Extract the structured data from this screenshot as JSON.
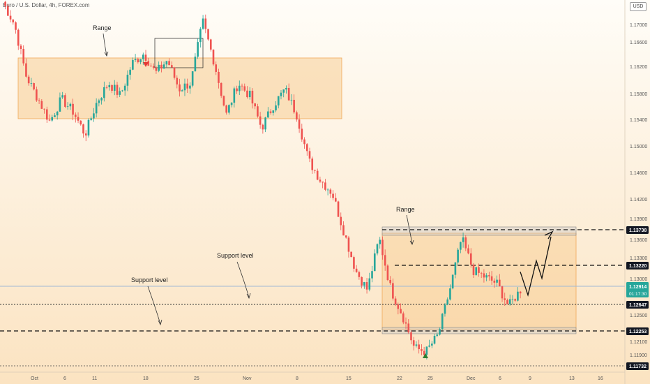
{
  "header": {
    "symbol": "Euro / U.S. Dollar, 4h, FOREX.com",
    "currency": "USD"
  },
  "chart_data": {
    "type": "candlestick",
    "title": "Euro / U.S. Dollar, 4h, FOREX.com",
    "ylim": [
      1.117,
      1.1745
    ],
    "price_axis": [
      "1.17000",
      "1.16600",
      "1.16200",
      "1.15800",
      "1.15400",
      "1.15000",
      "1.14600",
      "1.14200",
      "1.13900",
      "1.13600",
      "1.13300",
      "1.13000",
      "1.12500",
      "1.12100",
      "1.11900"
    ],
    "date_axis": [
      "Oct",
      "6",
      "11",
      "18",
      "25",
      "Nov",
      "8",
      "15",
      "22",
      "25",
      "Dec",
      "6",
      "9",
      "13",
      "16"
    ],
    "price_path": [
      [
        "Oct",
        1.1735
      ],
      [
        "Oct",
        1.17
      ],
      [
        "Oct",
        1.162
      ],
      [
        "Oct",
        1.1585
      ],
      [
        "6",
        1.155
      ],
      [
        "6",
        1.1585
      ],
      [
        "11",
        1.1565
      ],
      [
        "11",
        1.153
      ],
      [
        "11",
        1.158
      ],
      [
        "11",
        1.161
      ],
      [
        "18",
        1.159
      ],
      [
        "18",
        1.164
      ],
      [
        "18",
        1.1655
      ],
      [
        "18",
        1.1625
      ],
      [
        "25",
        1.1645
      ],
      [
        "25",
        1.16
      ],
      [
        "25",
        1.161
      ],
      [
        "25",
        1.1705
      ],
      [
        "25",
        1.164
      ],
      [
        "Nov",
        1.156
      ],
      [
        "Nov",
        1.161
      ],
      [
        "Nov",
        1.159
      ],
      [
        "Nov",
        1.154
      ],
      [
        "8",
        1.1575
      ],
      [
        "8",
        1.16
      ],
      [
        "8",
        1.156
      ],
      [
        "8",
        1.149
      ],
      [
        "8",
        1.146
      ],
      [
        "15",
        1.144
      ],
      [
        "15",
        1.138
      ],
      [
        "15",
        1.132
      ],
      [
        "15",
        1.129
      ],
      [
        "22",
        1.137
      ],
      [
        "22",
        1.129
      ],
      [
        "22",
        1.125
      ],
      [
        "22",
        1.12
      ],
      [
        "25",
        1.1195
      ],
      [
        "25",
        1.122
      ],
      [
        "25",
        1.129
      ],
      [
        "25",
        1.137
      ],
      [
        "Dec",
        1.132
      ],
      [
        "Dec",
        1.131
      ],
      [
        "6",
        1.13
      ],
      [
        "6",
        1.1265
      ],
      [
        "6",
        1.129
      ]
    ],
    "levels": [
      {
        "price": "1.13738",
        "value": 1.13738,
        "style": "dashed"
      },
      {
        "price": "1.13220",
        "value": 1.1322,
        "style": "dashed"
      },
      {
        "price": "1.12914",
        "value": 1.12914,
        "style": "current",
        "countdown": "01:17:30"
      },
      {
        "price": "1.12647",
        "value": 1.12647,
        "style": "dotted"
      },
      {
        "price": "1.12253",
        "value": 1.12253,
        "style": "dashed"
      },
      {
        "price": "1.11732",
        "value": 1.11732,
        "style": "dotted"
      }
    ],
    "annotations": [
      {
        "text": "Range"
      },
      {
        "text": "Range"
      },
      {
        "text": "Support level"
      },
      {
        "text": "Support level"
      }
    ],
    "zones": [
      {
        "name": "range-zone-1",
        "from": "Oct",
        "to": "Nov",
        "low": 1.1545,
        "high": 1.163
      },
      {
        "name": "range-zone-2",
        "from": "15",
        "to": "13",
        "low": 1.1225,
        "high": 1.1371
      }
    ],
    "projection": [
      1.1318,
      1.1282,
      1.1335,
      1.1308,
      1.1372
    ],
    "colors": {
      "up": "#26a69a",
      "down": "#ef5350",
      "zone": "#f6c27a",
      "current_label": "#26a69a",
      "level_label": "#131722",
      "marker_up": "#2e7d32",
      "marker_down": "#e53935"
    }
  }
}
